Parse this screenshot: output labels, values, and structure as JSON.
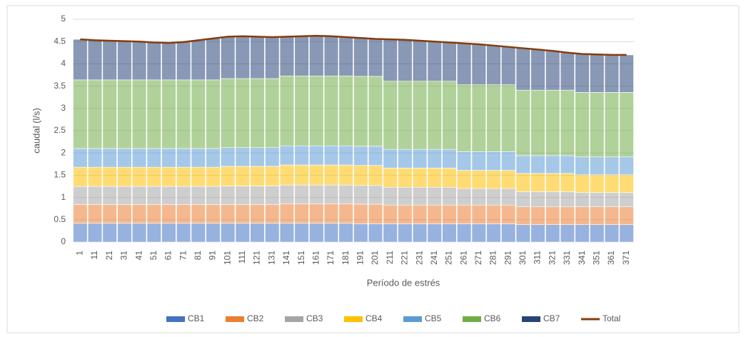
{
  "chart_data": {
    "type": "stacked-bar-line",
    "y_label": "caudal (l/s)",
    "x_label": "Período de estrés",
    "categories": [
      "1",
      "11",
      "21",
      "31",
      "41",
      "51",
      "61",
      "71",
      "81",
      "91",
      "101",
      "111",
      "121",
      "131",
      "141",
      "151",
      "161",
      "171",
      "181",
      "191",
      "201",
      "211",
      "221",
      "231",
      "241",
      "251",
      "261",
      "271",
      "281",
      "291",
      "301",
      "311",
      "321",
      "331",
      "341",
      "351",
      "361",
      "371"
    ],
    "ylim": [
      0,
      5
    ],
    "yticks": [
      0,
      0.5,
      1,
      1.5,
      2,
      2.5,
      3,
      3.5,
      4,
      4.5,
      5
    ],
    "grid": true,
    "legend": "bottom",
    "series": [
      {
        "name": "CB1",
        "color": "#4472c4",
        "values": [
          0.42,
          0.42,
          0.42,
          0.42,
          0.42,
          0.42,
          0.42,
          0.42,
          0.42,
          0.42,
          0.42,
          0.42,
          0.42,
          0.42,
          0.42,
          0.42,
          0.42,
          0.42,
          0.42,
          0.41,
          0.41,
          0.41,
          0.41,
          0.41,
          0.41,
          0.41,
          0.41,
          0.41,
          0.41,
          0.41,
          0.39,
          0.39,
          0.39,
          0.39,
          0.39,
          0.39,
          0.39,
          0.39
        ]
      },
      {
        "name": "CB2",
        "color": "#ed7d31",
        "values": [
          0.42,
          0.42,
          0.42,
          0.42,
          0.42,
          0.42,
          0.42,
          0.42,
          0.42,
          0.42,
          0.42,
          0.42,
          0.42,
          0.42,
          0.44,
          0.44,
          0.44,
          0.44,
          0.44,
          0.44,
          0.44,
          0.42,
          0.42,
          0.42,
          0.42,
          0.42,
          0.42,
          0.42,
          0.42,
          0.42,
          0.4,
          0.4,
          0.4,
          0.4,
          0.4,
          0.4,
          0.4,
          0.4
        ]
      },
      {
        "name": "CB3",
        "color": "#a5a5a5",
        "values": [
          0.41,
          0.41,
          0.41,
          0.41,
          0.41,
          0.41,
          0.41,
          0.41,
          0.41,
          0.41,
          0.42,
          0.42,
          0.42,
          0.42,
          0.42,
          0.42,
          0.42,
          0.42,
          0.42,
          0.42,
          0.42,
          0.4,
          0.4,
          0.4,
          0.4,
          0.4,
          0.37,
          0.37,
          0.37,
          0.37,
          0.34,
          0.34,
          0.34,
          0.34,
          0.32,
          0.32,
          0.32,
          0.32
        ]
      },
      {
        "name": "CB4",
        "color": "#ffc000",
        "values": [
          0.43,
          0.43,
          0.43,
          0.43,
          0.43,
          0.43,
          0.43,
          0.43,
          0.43,
          0.43,
          0.44,
          0.44,
          0.44,
          0.44,
          0.45,
          0.45,
          0.45,
          0.45,
          0.45,
          0.45,
          0.45,
          0.43,
          0.43,
          0.43,
          0.43,
          0.43,
          0.41,
          0.41,
          0.41,
          0.41,
          0.41,
          0.41,
          0.41,
          0.41,
          0.4,
          0.4,
          0.4,
          0.4
        ]
      },
      {
        "name": "CB5",
        "color": "#5b9bd5",
        "values": [
          0.42,
          0.42,
          0.42,
          0.42,
          0.42,
          0.42,
          0.42,
          0.42,
          0.42,
          0.42,
          0.42,
          0.42,
          0.42,
          0.42,
          0.43,
          0.43,
          0.43,
          0.43,
          0.43,
          0.43,
          0.43,
          0.42,
          0.42,
          0.42,
          0.42,
          0.42,
          0.42,
          0.42,
          0.42,
          0.42,
          0.4,
          0.4,
          0.4,
          0.4,
          0.4,
          0.4,
          0.4,
          0.4
        ]
      },
      {
        "name": "CB6",
        "color": "#70ad47",
        "values": [
          1.54,
          1.54,
          1.54,
          1.54,
          1.54,
          1.54,
          1.54,
          1.54,
          1.54,
          1.54,
          1.55,
          1.55,
          1.55,
          1.55,
          1.57,
          1.57,
          1.57,
          1.57,
          1.57,
          1.57,
          1.57,
          1.53,
          1.53,
          1.53,
          1.53,
          1.53,
          1.5,
          1.5,
          1.5,
          1.5,
          1.47,
          1.47,
          1.47,
          1.47,
          1.45,
          1.45,
          1.45,
          1.45
        ]
      },
      {
        "name": "CB7",
        "color": "#264478",
        "values": [
          0.91,
          0.89,
          0.88,
          0.87,
          0.86,
          0.84,
          0.83,
          0.85,
          0.89,
          0.93,
          0.94,
          0.95,
          0.94,
          0.93,
          0.88,
          0.89,
          0.9,
          0.89,
          0.87,
          0.86,
          0.84,
          0.94,
          0.93,
          0.91,
          0.89,
          0.87,
          0.93,
          0.91,
          0.88,
          0.85,
          0.94,
          0.91,
          0.88,
          0.84,
          0.86,
          0.85,
          0.84,
          0.84
        ]
      },
      {
        "name": "Total",
        "color": "#843c0c",
        "line": true,
        "values": [
          4.55,
          4.53,
          4.52,
          4.51,
          4.5,
          4.48,
          4.47,
          4.49,
          4.53,
          4.57,
          4.61,
          4.62,
          4.61,
          4.6,
          4.61,
          4.62,
          4.63,
          4.62,
          4.6,
          4.58,
          4.56,
          4.55,
          4.54,
          4.52,
          4.5,
          4.48,
          4.46,
          4.44,
          4.41,
          4.38,
          4.35,
          4.32,
          4.29,
          4.25,
          4.22,
          4.21,
          4.2,
          4.2
        ]
      }
    ]
  }
}
